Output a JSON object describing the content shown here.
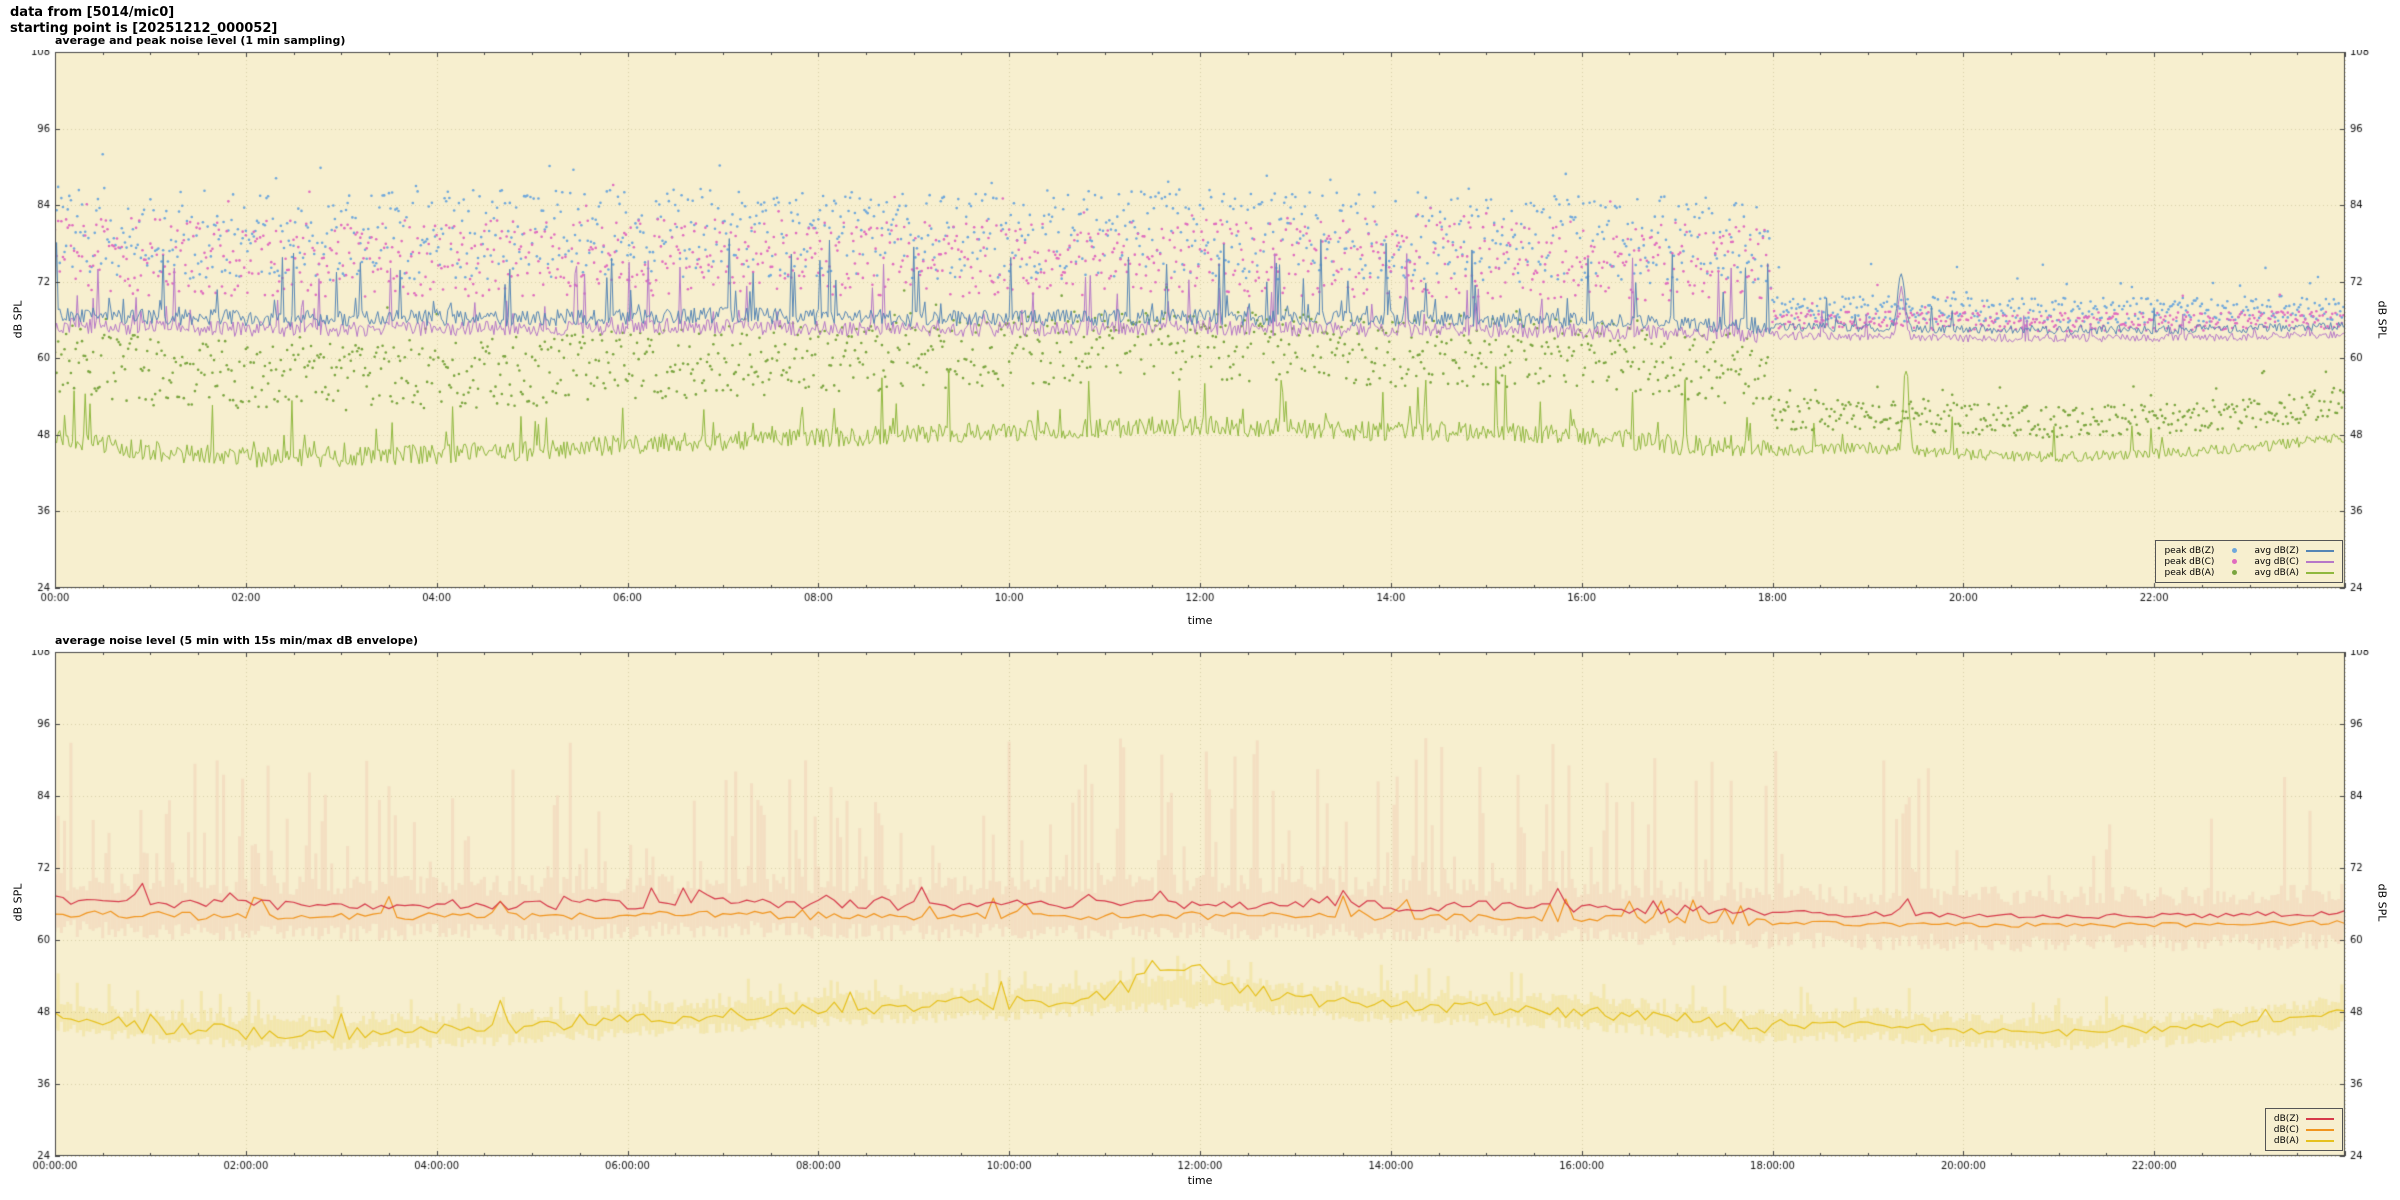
{
  "header": {
    "line1": "data from [5014/mic0]",
    "line2": "starting point is [20251212_000052]"
  },
  "colors": {
    "page_bg": "#ffffff",
    "plot_bg": "#f7efcf",
    "grid": "#d8d0a8",
    "border": "#444444",
    "text": "#111111",
    "peak_z": "#6fa8dc",
    "peak_c": "#e06bbf",
    "peak_a": "#7aa53f",
    "avg_z": "#5585b5",
    "avg_c": "#b678c8",
    "avg_a": "#8fb83e",
    "db_z": "#d6394a",
    "db_c": "#f1941d",
    "db_a": "#e6c11d",
    "envelope": "#dd6a6a"
  },
  "gen": {
    "seed": 52,
    "late_hour": 18
  },
  "chart_data": [
    {
      "type": "line",
      "title": "average and peak noise level (1 min sampling)",
      "xlabel": "time",
      "ylabel": "dB SPL",
      "ylabel_right": "dB SPL",
      "ylim": [
        24,
        108
      ],
      "yticks": [
        24,
        36,
        48,
        60,
        72,
        84,
        96,
        108
      ],
      "x_hours": 24,
      "xtick_step_h": 2,
      "xtick_labels": [
        "00:00",
        "02:00",
        "04:00",
        "06:00",
        "08:00",
        "10:00",
        "12:00",
        "14:00",
        "16:00",
        "18:00",
        "20:00",
        "22:00"
      ],
      "grid": true,
      "sample_minutes": 1,
      "legend_position": "bottom-right",
      "series": [
        {
          "name": "peak dB(Z)",
          "kind": "scatter",
          "color": "#6fa8dc",
          "anchors": [
            67,
            66.5,
            66.3,
            66.2,
            66.4,
            66.3,
            66.5,
            66.8,
            66.4,
            66.2,
            66.3,
            66.4,
            66.5,
            66.3,
            66.2,
            66.1,
            65.8,
            65.5,
            65,
            64.8,
            64.6,
            64.5,
            64.5,
            64.7,
            65
          ],
          "off": [
            6,
            20
          ],
          "off_late": [
            1,
            5
          ],
          "out_prob": 0.05,
          "out_extra": 6
        },
        {
          "name": "peak dB(C)",
          "kind": "scatter",
          "color": "#e06bbf",
          "anchors": [
            65.2,
            64.8,
            64.6,
            64.5,
            64.7,
            64.6,
            64.8,
            65,
            64.7,
            64.5,
            64.6,
            64.7,
            64.8,
            64.6,
            64.5,
            64.4,
            64.2,
            64,
            63.6,
            63.4,
            63.2,
            63.2,
            63.2,
            63.4,
            63.7
          ],
          "off": [
            5,
            17
          ],
          "off_late": [
            1,
            4
          ],
          "out_prob": 0.05,
          "out_extra": 6
        },
        {
          "name": "peak dB(A)",
          "kind": "scatter",
          "color": "#7aa53f",
          "anchors": [
            47.5,
            45.5,
            44.5,
            44.5,
            45,
            45.5,
            46.5,
            47,
            47.5,
            48,
            48.5,
            49,
            49.5,
            49,
            48.5,
            48.5,
            48,
            46.5,
            45.5,
            46,
            45,
            44.5,
            45,
            46,
            47.5
          ],
          "off": [
            7,
            18
          ],
          "off_late": [
            3,
            8
          ],
          "out_prob": 0.05,
          "out_extra": 6
        },
        {
          "name": "avg dB(A)",
          "kind": "line",
          "color": "#8fb83e",
          "width": 1,
          "anchors": [
            47.5,
            45.5,
            44.5,
            44.5,
            45,
            45.5,
            46.5,
            47,
            47.5,
            48,
            48.5,
            49,
            49.5,
            49,
            48.5,
            48.5,
            48,
            46.5,
            45.5,
            46,
            45,
            44.5,
            45,
            46,
            47.5
          ],
          "noise": 1.6,
          "spike_prob": 0.06,
          "spike_max": 9,
          "spike_prob_late": 0.03,
          "spike_max_late": 6,
          "events": [
            {
              "h": 19.4,
              "v": 13,
              "w": 0.04
            }
          ]
        },
        {
          "name": "avg dB(C)",
          "kind": "line",
          "color": "#b678c8",
          "width": 1,
          "anchors": [
            65.2,
            64.8,
            64.6,
            64.5,
            64.7,
            64.6,
            64.8,
            65,
            64.7,
            64.5,
            64.6,
            64.7,
            64.8,
            64.6,
            64.5,
            64.4,
            64.2,
            64,
            63.6,
            63.4,
            63.2,
            63.2,
            63.2,
            63.4,
            63.7
          ],
          "noise": 1.2,
          "spike_prob": 0.08,
          "spike_max": 11,
          "spike_prob_late": 0.02,
          "spike_max_late": 4,
          "events": [
            {
              "h": 19.35,
              "v": 8,
              "w": 0.05
            }
          ]
        },
        {
          "name": "avg dB(Z)",
          "kind": "line",
          "color": "#5585b5",
          "width": 1,
          "anchors": [
            67,
            66.5,
            66.3,
            66.2,
            66.4,
            66.3,
            66.5,
            66.8,
            66.4,
            66.2,
            66.3,
            66.4,
            66.5,
            66.3,
            66.2,
            66.1,
            65.8,
            65.5,
            65,
            64.8,
            64.6,
            64.5,
            64.5,
            64.7,
            65
          ],
          "noise": 1.3,
          "spike_prob": 0.08,
          "spike_max": 12,
          "spike_prob_late": 0.02,
          "spike_max_late": 5,
          "events": [
            {
              "h": 19.35,
              "v": 9,
              "w": 0.05
            }
          ]
        }
      ],
      "legend": {
        "scatter": [
          {
            "label": "peak dB(Z)",
            "color": "#6fa8dc"
          },
          {
            "label": "peak dB(C)",
            "color": "#e06bbf"
          },
          {
            "label": "peak dB(A)",
            "color": "#7aa53f"
          }
        ],
        "lines": [
          {
            "label": "avg dB(Z)",
            "color": "#5585b5"
          },
          {
            "label": "avg dB(C)",
            "color": "#b678c8"
          },
          {
            "label": "avg dB(A)",
            "color": "#8fb83e"
          }
        ]
      }
    },
    {
      "type": "line",
      "title": "average noise level (5 min with 15s min/max dB envelope)",
      "xlabel": "time",
      "ylabel": "dB SPL",
      "ylabel_right": "dB SPL",
      "ylim": [
        24,
        108
      ],
      "yticks": [
        24,
        36,
        48,
        60,
        72,
        84,
        96,
        108
      ],
      "x_hours": 24,
      "xtick_step_h": 2,
      "xtick_labels": [
        "00:00:00",
        "02:00:00",
        "04:00:00",
        "06:00:00",
        "08:00:00",
        "10:00:00",
        "12:00:00",
        "14:00:00",
        "16:00:00",
        "18:00:00",
        "20:00:00",
        "22:00:00"
      ],
      "grid": true,
      "sample_minutes": 5,
      "legend_position": "bottom-right",
      "series": [
        {
          "name": "envelope dB(Z)",
          "kind": "envelope",
          "color": "#dd6a6a",
          "alpha": 0.12,
          "step_min": 2,
          "anchors": [
            66.5,
            66,
            65.8,
            65.7,
            65.9,
            65.8,
            66,
            66.3,
            65.9,
            65.7,
            65.8,
            65.9,
            66,
            65.8,
            65.7,
            65.6,
            65.3,
            65,
            64.5,
            64.3,
            64.1,
            64,
            64,
            64.2,
            64.5
          ],
          "min_off": [
            3,
            6
          ],
          "max_small": [
            1.5,
            5
          ],
          "tall_prob": 0.3,
          "tall_prob_late": 0.1,
          "tall": [
            6,
            28
          ],
          "events": [
            {
              "h": 19.4,
              "v": 18,
              "w": 0.08
            }
          ]
        },
        {
          "name": "envelope dB(A)",
          "kind": "envelope",
          "color": "#e6c11d",
          "alpha": 0.18,
          "step_min": 2,
          "anchors": [
            47.5,
            45.5,
            44.5,
            44.5,
            45,
            45.5,
            46.5,
            47.5,
            48.5,
            49,
            49.5,
            50.5,
            51.5,
            50,
            49,
            48.5,
            48,
            46.5,
            45.5,
            46,
            45,
            44.5,
            45,
            46,
            48
          ],
          "min_off": [
            1,
            3
          ],
          "max_small": [
            1,
            3
          ],
          "tall_prob": 0.12,
          "tall_prob_late": 0.06,
          "tall": [
            3,
            7
          ],
          "events": []
        },
        {
          "name": "dB(A)",
          "kind": "line",
          "color": "#e6c11d",
          "width": 1.2,
          "anchors": [
            47.5,
            45.5,
            44.5,
            44.5,
            45,
            45.5,
            46.5,
            47.5,
            48.5,
            49,
            49.5,
            50.5,
            51.5,
            50,
            49,
            48.5,
            48,
            46.5,
            45.5,
            46,
            45,
            44.5,
            45,
            46,
            48
          ],
          "noise": 1.1,
          "spike_prob": 0.1,
          "spike_max": 4,
          "spike_prob_late": 0.06,
          "spike_max_late": 3,
          "events": [
            {
              "h": 11.8,
              "v": 4.5,
              "w": 0.5
            }
          ]
        },
        {
          "name": "dB(C)",
          "kind": "line",
          "color": "#f1941d",
          "width": 1.2,
          "anchors": [
            64.5,
            64.1,
            63.9,
            63.8,
            64,
            63.9,
            64.1,
            64.3,
            64,
            63.8,
            63.9,
            64,
            64.1,
            63.9,
            63.8,
            63.7,
            63.5,
            63.3,
            62.9,
            62.7,
            62.5,
            62.5,
            62.5,
            62.7,
            63
          ],
          "noise": 0.7,
          "spike_prob": 0.12,
          "spike_max": 3.5,
          "spike_prob_late": 0.04,
          "spike_max_late": 2,
          "events": []
        },
        {
          "name": "dB(Z)",
          "kind": "line",
          "color": "#d6394a",
          "width": 1.2,
          "anchors": [
            66.5,
            66,
            65.8,
            65.7,
            65.9,
            65.8,
            66,
            66.3,
            65.9,
            65.7,
            65.8,
            65.9,
            66,
            65.8,
            65.7,
            65.6,
            65.3,
            65,
            64.5,
            64.3,
            64.1,
            64,
            64,
            64.2,
            64.5
          ],
          "noise": 0.9,
          "spike_prob": 0.12,
          "spike_max": 4.5,
          "spike_prob_late": 0.04,
          "spike_max_late": 2,
          "events": [
            {
              "h": 19.4,
              "v": 3,
              "w": 0.06
            }
          ]
        }
      ],
      "legend": {
        "lines": [
          {
            "label": "dB(Z)",
            "color": "#d6394a"
          },
          {
            "label": "dB(C)",
            "color": "#f1941d"
          },
          {
            "label": "dB(A)",
            "color": "#e6c11d"
          }
        ]
      }
    }
  ]
}
